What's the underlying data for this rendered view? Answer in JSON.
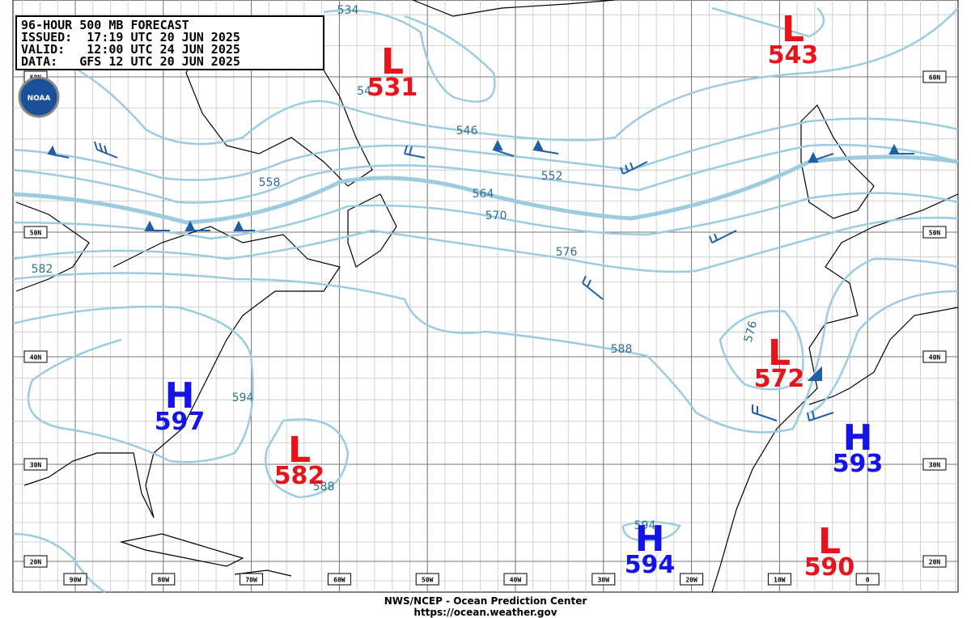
{
  "header": {
    "lines": [
      "96-HOUR 500 MB FORECAST",
      "ISSUED:  17:19 UTC 20 JUN 2025",
      "VALID:   12:00 UTC 24 JUN 2025",
      "DATA:   GFS 12 UTC 20 JUN 2025"
    ]
  },
  "logo": "NOAA",
  "centers": [
    {
      "type": "L",
      "value": 531
    },
    {
      "type": "L",
      "value": 543
    },
    {
      "type": "H",
      "value": 597
    },
    {
      "type": "L",
      "value": 582
    },
    {
      "type": "L",
      "value": 572
    },
    {
      "type": "H",
      "value": 593
    },
    {
      "type": "H",
      "value": 594
    },
    {
      "type": "L",
      "value": 590
    }
  ],
  "contour_labels": [
    534,
    54,
    546,
    552,
    558,
    564,
    570,
    576,
    582,
    588,
    594,
    576,
    588,
    594
  ],
  "latitudes": [
    "60N",
    "50N",
    "40N",
    "30N",
    "20N"
  ],
  "longitudes": [
    "90W",
    "80W",
    "70W",
    "60W",
    "50W",
    "40W",
    "30W",
    "20W",
    "10W",
    "0"
  ],
  "footer": {
    "line1": "NWS/NCEP - Ocean Prediction Center",
    "line2": "https://ocean.weather.gov"
  }
}
